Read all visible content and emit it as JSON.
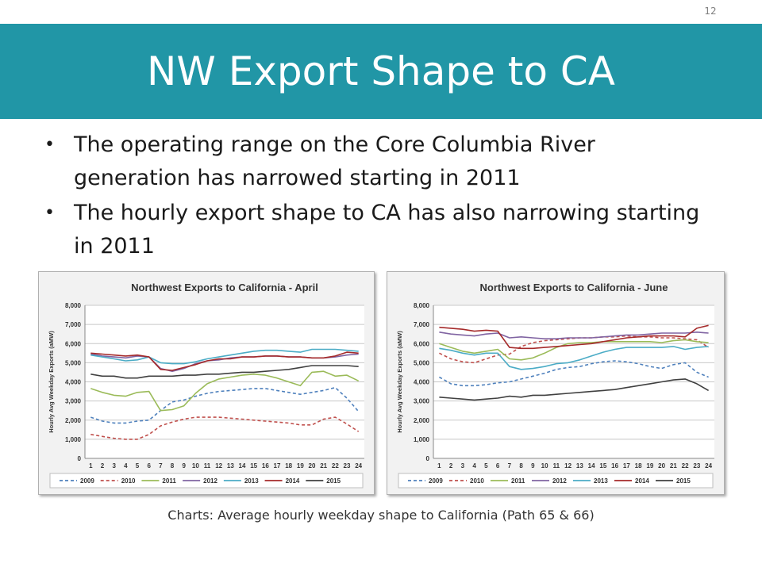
{
  "page_number": "12",
  "title": "NW Export Shape to CA",
  "bullets": [
    "The operating range on the Core Columbia River generation has narrowed starting in 2011",
    "The hourly export shape to CA has also narrowing starting in 2011"
  ],
  "caption": "Charts: Average hourly weekday shape to California (Path 65 & 66)",
  "chart_data": [
    {
      "type": "line",
      "title": "Northwest Exports to California - April",
      "ylabel": "Hourly Avg Weekday Exports (aMW)",
      "xlabel": "",
      "ylim": [
        0,
        8000
      ],
      "yticks": [
        "0",
        "1,000",
        "2,000",
        "3,000",
        "4,000",
        "5,000",
        "6,000",
        "7,000",
        "8,000"
      ],
      "grid": true,
      "legend": "bottom",
      "x": [
        1,
        2,
        3,
        4,
        5,
        6,
        7,
        8,
        9,
        10,
        11,
        12,
        13,
        14,
        15,
        16,
        17,
        18,
        19,
        20,
        21,
        22,
        23,
        24
      ],
      "series": [
        {
          "name": "2009",
          "color": "#4f81bd",
          "dash": "dash",
          "values": [
            2150,
            1950,
            1850,
            1850,
            1950,
            2000,
            2500,
            2950,
            3050,
            3250,
            3400,
            3500,
            3550,
            3600,
            3650,
            3650,
            3550,
            3450,
            3350,
            3450,
            3550,
            3700,
            3150,
            2450
          ]
        },
        {
          "name": "2010",
          "color": "#c0504d",
          "dash": "dash",
          "values": [
            1250,
            1150,
            1050,
            1000,
            1000,
            1250,
            1700,
            1900,
            2050,
            2150,
            2150,
            2150,
            2100,
            2050,
            2000,
            1950,
            1900,
            1850,
            1750,
            1750,
            2050,
            2150,
            1800,
            1400
          ]
        },
        {
          "name": "2011",
          "color": "#9bbb59",
          "dash": "solid",
          "values": [
            3650,
            3450,
            3300,
            3250,
            3450,
            3500,
            2500,
            2550,
            2750,
            3400,
            3900,
            4150,
            4250,
            4350,
            4400,
            4350,
            4200,
            4000,
            3800,
            4500,
            4550,
            4300,
            4350,
            4050
          ]
        },
        {
          "name": "2012",
          "color": "#8064a2",
          "dash": "solid",
          "values": [
            5450,
            5350,
            5300,
            5250,
            5350,
            5300,
            4700,
            4550,
            4700,
            4950,
            5100,
            5150,
            5250,
            5300,
            5300,
            5350,
            5350,
            5300,
            5300,
            5250,
            5250,
            5300,
            5400,
            5450
          ]
        },
        {
          "name": "2013",
          "color": "#4bacc6",
          "dash": "solid",
          "values": [
            5400,
            5300,
            5200,
            5100,
            5150,
            5300,
            5000,
            4950,
            4950,
            5050,
            5200,
            5300,
            5400,
            5500,
            5600,
            5650,
            5650,
            5600,
            5550,
            5700,
            5700,
            5700,
            5650,
            5600
          ]
        },
        {
          "name": "2014",
          "color": "#a52a2a",
          "dash": "solid",
          "values": [
            5500,
            5450,
            5400,
            5350,
            5400,
            5300,
            4650,
            4600,
            4750,
            4900,
            5100,
            5200,
            5200,
            5300,
            5300,
            5350,
            5350,
            5300,
            5300,
            5250,
            5250,
            5350,
            5550,
            5500
          ]
        },
        {
          "name": "2015",
          "color": "#404040",
          "dash": "solid",
          "values": [
            4400,
            4300,
            4300,
            4200,
            4200,
            4300,
            4300,
            4300,
            4350,
            4350,
            4400,
            4400,
            4450,
            4500,
            4500,
            4550,
            4600,
            4650,
            4750,
            4850,
            4850,
            4850,
            4850,
            4800
          ]
        }
      ]
    },
    {
      "type": "line",
      "title": "Northwest Exports to California - June",
      "ylabel": "Hourly Avg Weekday Exports (aMW)",
      "xlabel": "",
      "ylim": [
        0,
        8000
      ],
      "yticks": [
        "0",
        "1,000",
        "2,000",
        "3,000",
        "4,000",
        "5,000",
        "6,000",
        "7,000",
        "8,000"
      ],
      "grid": true,
      "legend": "bottom",
      "x": [
        1,
        2,
        3,
        4,
        5,
        6,
        7,
        8,
        9,
        10,
        11,
        12,
        13,
        14,
        15,
        16,
        17,
        18,
        19,
        20,
        21,
        22,
        23,
        24
      ],
      "series": [
        {
          "name": "2009",
          "color": "#4f81bd",
          "dash": "dash",
          "values": [
            4250,
            3900,
            3800,
            3800,
            3850,
            3950,
            4000,
            4150,
            4300,
            4450,
            4650,
            4750,
            4800,
            4950,
            5050,
            5100,
            5050,
            4950,
            4800,
            4700,
            4900,
            5000,
            4500,
            4250
          ]
        },
        {
          "name": "2010",
          "color": "#c0504d",
          "dash": "dash",
          "values": [
            5500,
            5200,
            5050,
            5000,
            5200,
            5400,
            5450,
            5850,
            6050,
            6150,
            6200,
            6250,
            6300,
            6300,
            6350,
            6350,
            6400,
            6350,
            6350,
            6300,
            6300,
            6250,
            6200,
            5800
          ]
        },
        {
          "name": "2011",
          "color": "#9bbb59",
          "dash": "solid",
          "values": [
            6000,
            5800,
            5600,
            5500,
            5600,
            5700,
            5200,
            5150,
            5250,
            5500,
            5800,
            6000,
            6050,
            6050,
            6100,
            6100,
            6100,
            6100,
            6100,
            6050,
            6150,
            6200,
            6100,
            6050
          ]
        },
        {
          "name": "2012",
          "color": "#8064a2",
          "dash": "solid",
          "values": [
            6600,
            6500,
            6450,
            6400,
            6500,
            6550,
            6300,
            6350,
            6300,
            6250,
            6250,
            6300,
            6300,
            6300,
            6350,
            6400,
            6450,
            6450,
            6500,
            6550,
            6550,
            6550,
            6600,
            6550
          ]
        },
        {
          "name": "2013",
          "color": "#4bacc6",
          "dash": "solid",
          "values": [
            5750,
            5650,
            5500,
            5400,
            5500,
            5500,
            4800,
            4650,
            4700,
            4800,
            4950,
            5000,
            5150,
            5350,
            5550,
            5700,
            5800,
            5800,
            5800,
            5800,
            5850,
            5700,
            5800,
            5850
          ]
        },
        {
          "name": "2014",
          "color": "#a52a2a",
          "dash": "solid",
          "values": [
            6850,
            6800,
            6750,
            6650,
            6700,
            6650,
            5800,
            5750,
            5750,
            5800,
            5850,
            5900,
            5950,
            6000,
            6100,
            6200,
            6300,
            6350,
            6400,
            6400,
            6400,
            6350,
            6800,
            6950
          ]
        },
        {
          "name": "2015",
          "color": "#404040",
          "dash": "solid",
          "values": [
            3200,
            3150,
            3100,
            3050,
            3100,
            3150,
            3250,
            3200,
            3300,
            3300,
            3350,
            3400,
            3450,
            3500,
            3550,
            3600,
            3700,
            3800,
            3900,
            4000,
            4100,
            4150,
            3900,
            3550
          ]
        }
      ]
    }
  ]
}
